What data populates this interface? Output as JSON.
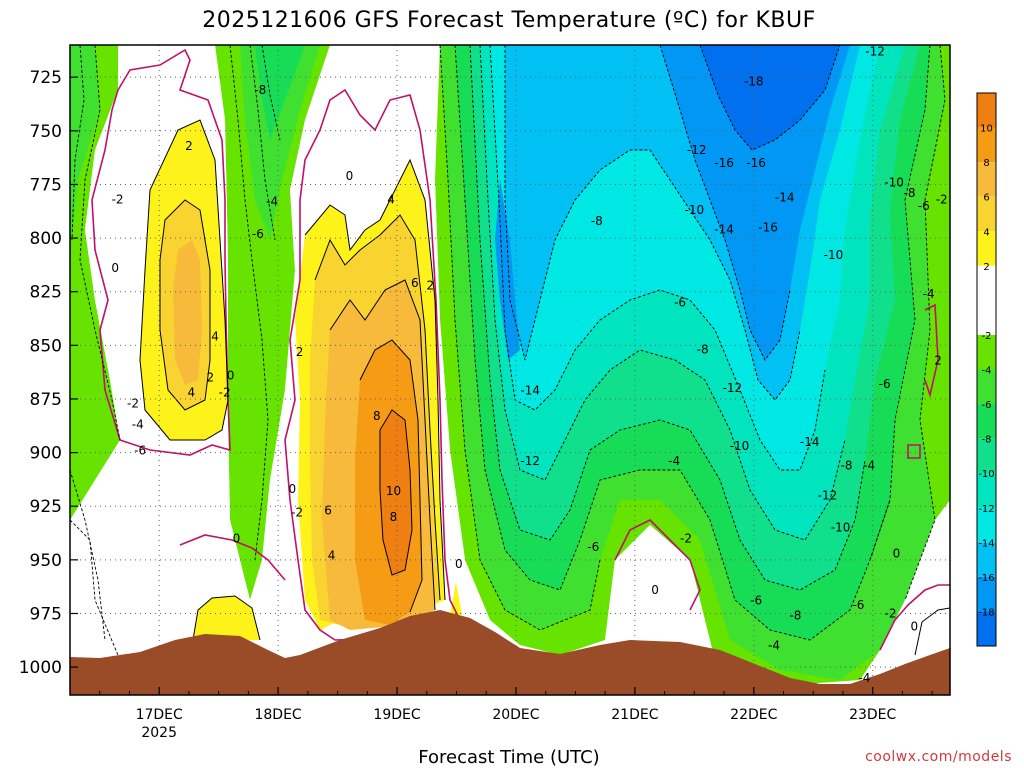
{
  "chart_data": {
    "type": "time-height contour",
    "title": "2025121606 GFS Forecast Temperature (ºC) for KBUF",
    "xlabel": "Forecast Time (UTC)",
    "x_ticks": [
      {
        "date": "2025-12-17",
        "label": "17DEC",
        "sublabel": "2025"
      },
      {
        "date": "2025-12-18",
        "label": "18DEC"
      },
      {
        "date": "2025-12-19",
        "label": "19DEC"
      },
      {
        "date": "2025-12-20",
        "label": "20DEC"
      },
      {
        "date": "2025-12-21",
        "label": "21DEC"
      },
      {
        "date": "2025-12-22",
        "label": "22DEC"
      },
      {
        "date": "2025-12-23",
        "label": "23DEC"
      }
    ],
    "x_range_days": [
      -0.75,
      6.65
    ],
    "y_ticks": [
      "725",
      "750",
      "775",
      "800",
      "825",
      "850",
      "875",
      "900",
      "925",
      "950",
      "975",
      "1000"
    ],
    "y_range": [
      710,
      1013
    ],
    "grid": true,
    "colorbar": {
      "tick_labels": [
        "10",
        "8",
        "6",
        "4",
        "2",
        "-2",
        "-4",
        "-6",
        "-8",
        "-10",
        "-12",
        "-14",
        "-16",
        "-18"
      ],
      "bins": [
        {
          "range": [
            10,
            12
          ],
          "color": "#f07f12"
        },
        {
          "range": [
            8,
            10
          ],
          "color": "#f59c14"
        },
        {
          "range": [
            6,
            8
          ],
          "color": "#f8ba3a"
        },
        {
          "range": [
            4,
            6
          ],
          "color": "#f9d430"
        },
        {
          "range": [
            2,
            4
          ],
          "color": "#fdf31a"
        },
        {
          "range": [
            -2,
            2
          ],
          "color": "#ffffff"
        },
        {
          "range": [
            -4,
            -2
          ],
          "color": "#66e400"
        },
        {
          "range": [
            -6,
            -4
          ],
          "color": "#3fe030"
        },
        {
          "range": [
            -8,
            -6
          ],
          "color": "#16dc56"
        },
        {
          "range": [
            -10,
            -8
          ],
          "color": "#10e08c"
        },
        {
          "range": [
            -12,
            -10
          ],
          "color": "#00e5be"
        },
        {
          "range": [
            -14,
            -12
          ],
          "color": "#00e8e4"
        },
        {
          "range": [
            -16,
            -14
          ],
          "color": "#00c0f4"
        },
        {
          "range": [
            -18,
            -16
          ],
          "color": "#0098f4"
        },
        {
          "range": [
            -20,
            -18
          ],
          "color": "#0070ee"
        }
      ]
    },
    "contour_labels": [
      {
        "label": "2",
        "day": 0.25,
        "p": 757
      },
      {
        "label": "-2",
        "day": -0.35,
        "p": 782
      },
      {
        "label": "0",
        "day": -0.37,
        "p": 814
      },
      {
        "label": "4",
        "day": 0.47,
        "p": 846
      },
      {
        "label": "2",
        "day": 0.43,
        "p": 865
      },
      {
        "label": "4",
        "day": 0.27,
        "p": 872
      },
      {
        "label": "-2",
        "day": 0.55,
        "p": 872
      },
      {
        "label": "0",
        "day": 0.6,
        "p": 864
      },
      {
        "label": "-2",
        "day": -0.22,
        "p": 877
      },
      {
        "label": "-4",
        "day": -0.18,
        "p": 887
      },
      {
        "label": "-6",
        "day": -0.16,
        "p": 899
      },
      {
        "label": "0",
        "day": 0.65,
        "p": 940
      },
      {
        "label": "-8",
        "day": 0.85,
        "p": 731
      },
      {
        "label": "-4",
        "day": 0.95,
        "p": 783
      },
      {
        "label": "-6",
        "day": 0.83,
        "p": 798
      },
      {
        "label": "0",
        "day": 1.6,
        "p": 771
      },
      {
        "label": "4",
        "day": 1.95,
        "p": 782
      },
      {
        "label": "6",
        "day": 2.15,
        "p": 821
      },
      {
        "label": "2",
        "day": 2.28,
        "p": 822
      },
      {
        "label": "2",
        "day": 1.18,
        "p": 853
      },
      {
        "label": "8",
        "day": 1.83,
        "p": 883
      },
      {
        "label": "10",
        "day": 1.97,
        "p": 918
      },
      {
        "label": "8",
        "day": 1.97,
        "p": 930
      },
      {
        "label": "0",
        "day": 1.12,
        "p": 917
      },
      {
        "label": "-2",
        "day": 1.16,
        "p": 928
      },
      {
        "label": "6",
        "day": 1.42,
        "p": 927
      },
      {
        "label": "4",
        "day": 1.45,
        "p": 948
      },
      {
        "label": "0",
        "day": 2.52,
        "p": 952
      },
      {
        "label": "-14",
        "day": 3.12,
        "p": 871
      },
      {
        "label": "-12",
        "day": 3.12,
        "p": 904
      },
      {
        "label": "-6",
        "day": 3.65,
        "p": 944
      },
      {
        "label": "-8",
        "day": 3.68,
        "p": 792
      },
      {
        "label": "-10",
        "day": 4.5,
        "p": 787
      },
      {
        "label": "-14",
        "day": 4.75,
        "p": 796
      },
      {
        "label": "-12",
        "day": 4.52,
        "p": 759
      },
      {
        "label": "-16",
        "day": 4.75,
        "p": 765
      },
      {
        "label": "-16",
        "day": 5.02,
        "p": 765
      },
      {
        "label": "-18",
        "day": 5.0,
        "p": 727
      },
      {
        "label": "-12",
        "day": 6.02,
        "p": 713
      },
      {
        "label": "-14",
        "day": 5.26,
        "p": 781
      },
      {
        "label": "-16",
        "day": 5.12,
        "p": 795
      },
      {
        "label": "-10",
        "day": 5.67,
        "p": 808
      },
      {
        "label": "-6",
        "day": 4.38,
        "p": 830
      },
      {
        "label": "-8",
        "day": 4.57,
        "p": 852
      },
      {
        "label": "-12",
        "day": 4.82,
        "p": 870
      },
      {
        "label": "-10",
        "day": 4.88,
        "p": 897
      },
      {
        "label": "-14",
        "day": 5.47,
        "p": 895
      },
      {
        "label": "-4",
        "day": 4.33,
        "p": 904
      },
      {
        "label": "-8",
        "day": 5.78,
        "p": 906
      },
      {
        "label": "-4",
        "day": 5.97,
        "p": 906
      },
      {
        "label": "-12",
        "day": 5.62,
        "p": 920
      },
      {
        "label": "-10",
        "day": 5.73,
        "p": 935
      },
      {
        "label": "-2",
        "day": 4.43,
        "p": 940
      },
      {
        "label": "0",
        "day": 4.17,
        "p": 964
      },
      {
        "label": "-6",
        "day": 5.02,
        "p": 969
      },
      {
        "label": "-8",
        "day": 5.35,
        "p": 976
      },
      {
        "label": "-4",
        "day": 5.17,
        "p": 990
      },
      {
        "label": "-6",
        "day": 5.88,
        "p": 971
      },
      {
        "label": "-4",
        "day": 5.93,
        "p": 1005
      },
      {
        "label": "-2",
        "day": 6.15,
        "p": 975
      },
      {
        "label": "0",
        "day": 6.2,
        "p": 947
      },
      {
        "label": "0",
        "day": 6.35,
        "p": 981
      },
      {
        "label": "2",
        "day": 6.55,
        "p": 857
      },
      {
        "label": "-4",
        "day": 6.47,
        "p": 826
      },
      {
        "label": "-6",
        "day": 6.1,
        "p": 868
      },
      {
        "label": "-10",
        "day": 6.18,
        "p": 774
      },
      {
        "label": "-8",
        "day": 6.31,
        "p": 779
      },
      {
        "label": "-6",
        "day": 6.43,
        "p": 785
      },
      {
        "label": "-2",
        "day": 6.58,
        "p": 782
      }
    ],
    "credit": "coolwx.com/models"
  },
  "colors": {
    "grid": "#606060",
    "freezing_contour": "#c0106a",
    "terrain": "#9a4b28"
  }
}
